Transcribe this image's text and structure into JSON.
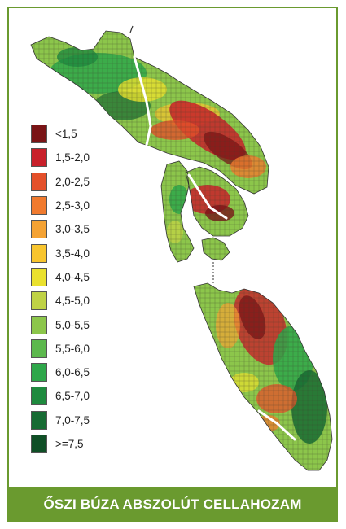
{
  "caption": "ŐSZI BÚZA ABSZOLÚT CELLAHOZAM",
  "legend": [
    {
      "label": "<1,5",
      "color": "#7a1416"
    },
    {
      "label": "1,5-2,0",
      "color": "#c8202a"
    },
    {
      "label": "2,0-2,5",
      "color": "#e4502a"
    },
    {
      "label": "2,5-3,0",
      "color": "#f07a2e"
    },
    {
      "label": "3,0-3,5",
      "color": "#f4a233"
    },
    {
      "label": "3,5-4,0",
      "color": "#f8c52e"
    },
    {
      "label": "4,0-4,5",
      "color": "#eae12e"
    },
    {
      "label": "4,5-5,0",
      "color": "#bfd245"
    },
    {
      "label": "5,0-5,5",
      "color": "#8cc64b"
    },
    {
      "label": "5,5-6,0",
      "color": "#5cb84d"
    },
    {
      "label": "6,0-6,5",
      "color": "#2ea74a"
    },
    {
      "label": "6,5-7,0",
      "color": "#1e8a3e"
    },
    {
      "label": "7,0-7,5",
      "color": "#176b33"
    },
    {
      "label": ">=7,5",
      "color": "#0f4f26"
    }
  ],
  "colors": {
    "frame": "#6a9a2f",
    "caption_bg": "#6a9a2f",
    "caption_text": "#ffffff",
    "grid_line": "#3a3a2a"
  }
}
